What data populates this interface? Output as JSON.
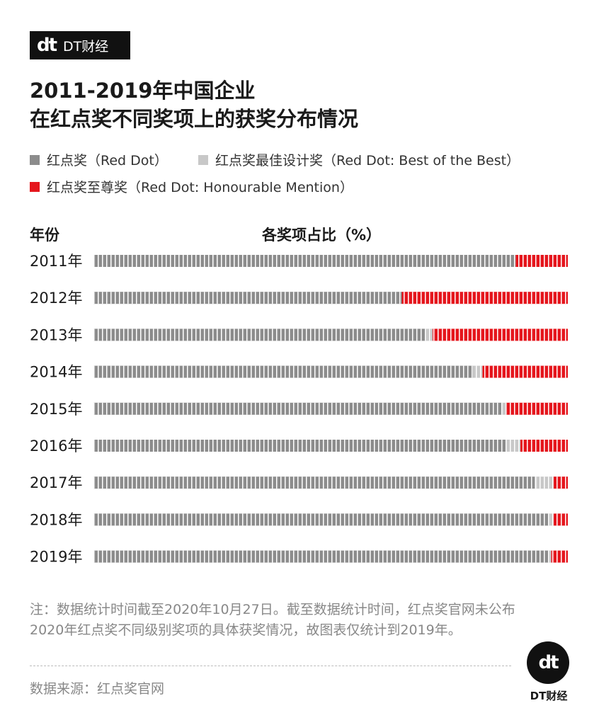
{
  "brand": {
    "mark": "dt",
    "name": "DT财经"
  },
  "title": {
    "line1": "2011-2019年中国企业",
    "line2": "在红点奖不同奖项上的获奖分布情况"
  },
  "legend": [
    {
      "label": "红点奖（Red Dot）",
      "color": "#8c8c8c"
    },
    {
      "label": "红点奖最佳设计奖（Red Dot: Best of the Best）",
      "color": "#c8c8c8"
    },
    {
      "label": "红点奖至尊奖（Red Dot: Honourable Mention）",
      "color": "#e5161d"
    }
  ],
  "headers": {
    "year": "年份",
    "share": "各奖项占比（%）"
  },
  "chart_data": {
    "type": "bar",
    "orientation": "horizontal",
    "stacked": true,
    "categories": [
      "2011年",
      "2012年",
      "2013年",
      "2014年",
      "2015年",
      "2016年",
      "2017年",
      "2018年",
      "2019年"
    ],
    "series": [
      {
        "name": "红点奖（Red Dot）",
        "color": "#8c8c8c",
        "values": [
          89,
          65,
          70,
          80,
          86,
          87,
          93,
          96,
          96
        ]
      },
      {
        "name": "红点奖最佳设计奖（Red Dot: Best of the Best）",
        "color": "#c8c8c8",
        "values": [
          0,
          0,
          1.5,
          2,
          1,
          3,
          4,
          1,
          0.5
        ]
      },
      {
        "name": "红点奖至尊奖（Red Dot: Honourable Mention）",
        "color": "#e5161d",
        "values": [
          11,
          35,
          28.5,
          18,
          13,
          10,
          3,
          3,
          3.5
        ]
      }
    ],
    "xlim": [
      0,
      100
    ],
    "grid": false
  },
  "note": "注：数据统计时间截至2020年10月27日。截至数据统计时间，红点奖官网未公布2020年红点奖不同级别奖项的具体获奖情况，故图表仅统计到2019年。",
  "source": "数据来源：红点奖官网"
}
